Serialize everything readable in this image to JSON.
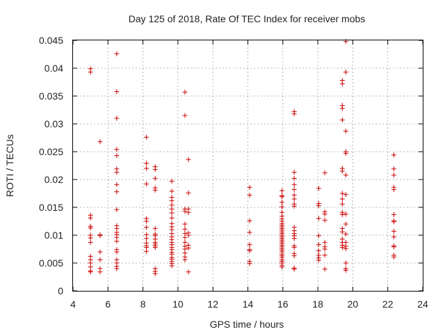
{
  "chart_data": {
    "type": "scatter",
    "title": "Day 125 of 2018, Rate Of TEC Index for receiver mobs",
    "xlabel": "GPS time / hours",
    "ylabel": "ROTI / TECUs",
    "xlim": [
      4,
      24
    ],
    "ylim": [
      0,
      0.045
    ],
    "xticks": [
      4,
      6,
      8,
      10,
      12,
      14,
      16,
      18,
      20,
      22,
      24
    ],
    "yticks": [
      0,
      0.005,
      0.01,
      0.015,
      0.02,
      0.025,
      0.03,
      0.035,
      0.04,
      0.045
    ],
    "grid": true,
    "marker": "+",
    "color": "#cc0000",
    "series": [
      {
        "name": "ROTI",
        "points": [
          [
            5.0,
            0.0399
          ],
          [
            5.0,
            0.0393
          ],
          [
            5.0,
            0.0136
          ],
          [
            5.0,
            0.0131
          ],
          [
            5.0,
            0.0116
          ],
          [
            5.0,
            0.0113
          ],
          [
            5.0,
            0.01
          ],
          [
            5.0,
            0.0095
          ],
          [
            5.0,
            0.0087
          ],
          [
            5.0,
            0.0062
          ],
          [
            5.0,
            0.0056
          ],
          [
            5.0,
            0.005
          ],
          [
            5.0,
            0.0043
          ],
          [
            5.0,
            0.0036
          ],
          [
            5.0,
            0.0034
          ],
          [
            5.55,
            0.0268
          ],
          [
            5.55,
            0.0101
          ],
          [
            5.55,
            0.0099
          ],
          [
            5.55,
            0.007
          ],
          [
            5.55,
            0.0056
          ],
          [
            5.55,
            0.004
          ],
          [
            5.55,
            0.0034
          ],
          [
            6.5,
            0.0426
          ],
          [
            6.5,
            0.0358
          ],
          [
            6.5,
            0.031
          ],
          [
            6.5,
            0.0254
          ],
          [
            6.5,
            0.0243
          ],
          [
            6.5,
            0.0219
          ],
          [
            6.5,
            0.0213
          ],
          [
            6.5,
            0.0191
          ],
          [
            6.5,
            0.0178
          ],
          [
            6.5,
            0.0146
          ],
          [
            6.5,
            0.0117
          ],
          [
            6.5,
            0.0112
          ],
          [
            6.5,
            0.0105
          ],
          [
            6.5,
            0.0101
          ],
          [
            6.5,
            0.0096
          ],
          [
            6.5,
            0.0089
          ],
          [
            6.5,
            0.0074
          ],
          [
            6.5,
            0.007
          ],
          [
            6.5,
            0.0056
          ],
          [
            6.5,
            0.005
          ],
          [
            6.5,
            0.0044
          ],
          [
            6.5,
            0.004
          ],
          [
            8.2,
            0.0276
          ],
          [
            8.2,
            0.0229
          ],
          [
            8.2,
            0.022
          ],
          [
            8.2,
            0.0192
          ],
          [
            8.2,
            0.013
          ],
          [
            8.2,
            0.0125
          ],
          [
            8.2,
            0.0114
          ],
          [
            8.2,
            0.0101
          ],
          [
            8.2,
            0.0094
          ],
          [
            8.2,
            0.0086
          ],
          [
            8.2,
            0.0081
          ],
          [
            8.2,
            0.0078
          ],
          [
            8.2,
            0.0071
          ],
          [
            8.7,
            0.0223
          ],
          [
            8.7,
            0.0218
          ],
          [
            8.7,
            0.0202
          ],
          [
            8.7,
            0.0185
          ],
          [
            8.7,
            0.0181
          ],
          [
            8.7,
            0.0112
          ],
          [
            8.7,
            0.0102
          ],
          [
            8.7,
            0.0099
          ],
          [
            8.7,
            0.0093
          ],
          [
            8.7,
            0.0087
          ],
          [
            8.7,
            0.0084
          ],
          [
            8.7,
            0.0081
          ],
          [
            8.7,
            0.0078
          ],
          [
            8.7,
            0.004
          ],
          [
            8.7,
            0.0035
          ],
          [
            8.7,
            0.0031
          ],
          [
            9.65,
            0.0197
          ],
          [
            9.65,
            0.0179
          ],
          [
            9.65,
            0.0168
          ],
          [
            9.65,
            0.0162
          ],
          [
            9.65,
            0.0154
          ],
          [
            9.65,
            0.0147
          ],
          [
            9.65,
            0.014
          ],
          [
            9.65,
            0.0131
          ],
          [
            9.65,
            0.0121
          ],
          [
            9.65,
            0.0115
          ],
          [
            9.65,
            0.011
          ],
          [
            9.65,
            0.0103
          ],
          [
            9.65,
            0.0097
          ],
          [
            9.65,
            0.0092
          ],
          [
            9.65,
            0.0087
          ],
          [
            9.65,
            0.0083
          ],
          [
            9.65,
            0.0078
          ],
          [
            9.65,
            0.0074
          ],
          [
            9.65,
            0.0069
          ],
          [
            9.65,
            0.0066
          ],
          [
            9.65,
            0.006
          ],
          [
            9.65,
            0.0057
          ],
          [
            9.65,
            0.0053
          ],
          [
            9.65,
            0.0049
          ],
          [
            9.65,
            0.0045
          ],
          [
            10.4,
            0.0357
          ],
          [
            10.4,
            0.0315
          ],
          [
            10.4,
            0.0147
          ],
          [
            10.4,
            0.0143
          ],
          [
            10.4,
            0.012
          ],
          [
            10.4,
            0.0111
          ],
          [
            10.4,
            0.0103
          ],
          [
            10.4,
            0.0096
          ],
          [
            10.4,
            0.0087
          ],
          [
            10.4,
            0.008
          ],
          [
            10.4,
            0.0075
          ],
          [
            10.4,
            0.0068
          ],
          [
            10.4,
            0.0061
          ],
          [
            10.4,
            0.0056
          ],
          [
            10.6,
            0.0236
          ],
          [
            10.6,
            0.0176
          ],
          [
            10.6,
            0.0147
          ],
          [
            10.6,
            0.0141
          ],
          [
            10.6,
            0.0104
          ],
          [
            10.6,
            0.01
          ],
          [
            10.6,
            0.0082
          ],
          [
            10.6,
            0.0077
          ],
          [
            10.6,
            0.0034
          ],
          [
            14.1,
            0.0186
          ],
          [
            14.1,
            0.0172
          ],
          [
            14.1,
            0.0126
          ],
          [
            14.1,
            0.0105
          ],
          [
            14.1,
            0.0083
          ],
          [
            14.1,
            0.0074
          ],
          [
            14.1,
            0.0072
          ],
          [
            14.1,
            0.0053
          ],
          [
            14.1,
            0.0049
          ],
          [
            15.95,
            0.018
          ],
          [
            15.95,
            0.0171
          ],
          [
            15.95,
            0.0169
          ],
          [
            15.95,
            0.0159
          ],
          [
            15.95,
            0.0151
          ],
          [
            15.95,
            0.0141
          ],
          [
            15.95,
            0.0134
          ],
          [
            15.95,
            0.0129
          ],
          [
            15.95,
            0.0125
          ],
          [
            15.95,
            0.0121
          ],
          [
            15.95,
            0.0118
          ],
          [
            15.95,
            0.0115
          ],
          [
            15.95,
            0.0112
          ],
          [
            15.95,
            0.0109
          ],
          [
            15.95,
            0.0106
          ],
          [
            15.95,
            0.0103
          ],
          [
            15.95,
            0.01
          ],
          [
            15.95,
            0.0097
          ],
          [
            15.95,
            0.0094
          ],
          [
            15.95,
            0.0091
          ],
          [
            15.95,
            0.0088
          ],
          [
            15.95,
            0.0085
          ],
          [
            15.95,
            0.0082
          ],
          [
            15.95,
            0.0079
          ],
          [
            15.95,
            0.0076
          ],
          [
            15.95,
            0.0073
          ],
          [
            15.95,
            0.007
          ],
          [
            15.95,
            0.0066
          ],
          [
            15.95,
            0.0063
          ],
          [
            15.95,
            0.006
          ],
          [
            15.95,
            0.0056
          ],
          [
            15.95,
            0.0053
          ],
          [
            15.95,
            0.005
          ],
          [
            15.95,
            0.0046
          ],
          [
            15.95,
            0.0043
          ],
          [
            16.65,
            0.0322
          ],
          [
            16.65,
            0.0318
          ],
          [
            16.65,
            0.0213
          ],
          [
            16.65,
            0.0202
          ],
          [
            16.65,
            0.0191
          ],
          [
            16.65,
            0.0182
          ],
          [
            16.65,
            0.0172
          ],
          [
            16.65,
            0.0165
          ],
          [
            16.65,
            0.0156
          ],
          [
            16.65,
            0.0152
          ],
          [
            16.65,
            0.0114
          ],
          [
            16.65,
            0.0108
          ],
          [
            16.65,
            0.0103
          ],
          [
            16.65,
            0.0099
          ],
          [
            16.65,
            0.0094
          ],
          [
            16.65,
            0.0081
          ],
          [
            16.65,
            0.0078
          ],
          [
            16.65,
            0.0067
          ],
          [
            16.65,
            0.0063
          ],
          [
            16.65,
            0.0041
          ],
          [
            16.65,
            0.0039
          ],
          [
            18.05,
            0.0184
          ],
          [
            18.05,
            0.0157
          ],
          [
            18.05,
            0.0153
          ],
          [
            18.05,
            0.013
          ],
          [
            18.05,
            0.0099
          ],
          [
            18.05,
            0.0083
          ],
          [
            18.05,
            0.0072
          ],
          [
            18.05,
            0.0064
          ],
          [
            18.05,
            0.0059
          ],
          [
            18.05,
            0.0055
          ],
          [
            18.4,
            0.0212
          ],
          [
            18.4,
            0.0142
          ],
          [
            18.4,
            0.0138
          ],
          [
            18.4,
            0.0127
          ],
          [
            18.4,
            0.0087
          ],
          [
            18.4,
            0.0079
          ],
          [
            18.4,
            0.0075
          ],
          [
            18.4,
            0.0064
          ],
          [
            18.4,
            0.0039
          ],
          [
            19.4,
            0.0378
          ],
          [
            19.4,
            0.0372
          ],
          [
            19.4,
            0.0333
          ],
          [
            19.4,
            0.0328
          ],
          [
            19.4,
            0.0307
          ],
          [
            19.4,
            0.022
          ],
          [
            19.4,
            0.0215
          ],
          [
            19.4,
            0.0175
          ],
          [
            19.4,
            0.0165
          ],
          [
            19.4,
            0.0156
          ],
          [
            19.4,
            0.0141
          ],
          [
            19.4,
            0.0137
          ],
          [
            19.4,
            0.0112
          ],
          [
            19.4,
            0.0106
          ],
          [
            19.4,
            0.0093
          ],
          [
            19.4,
            0.0087
          ],
          [
            19.4,
            0.0082
          ],
          [
            19.4,
            0.0078
          ],
          [
            19.6,
            0.0448
          ],
          [
            19.6,
            0.0393
          ],
          [
            19.6,
            0.0287
          ],
          [
            19.6,
            0.025
          ],
          [
            19.6,
            0.0247
          ],
          [
            19.6,
            0.0208
          ],
          [
            19.6,
            0.0173
          ],
          [
            19.6,
            0.0138
          ],
          [
            19.6,
            0.012
          ],
          [
            19.6,
            0.0102
          ],
          [
            19.6,
            0.0087
          ],
          [
            19.6,
            0.008
          ],
          [
            19.6,
            0.0076
          ],
          [
            19.6,
            0.005
          ],
          [
            19.6,
            0.004
          ],
          [
            19.6,
            0.0037
          ],
          [
            22.35,
            0.0244
          ],
          [
            22.35,
            0.0219
          ],
          [
            22.35,
            0.0208
          ],
          [
            22.35,
            0.0186
          ],
          [
            22.35,
            0.0182
          ],
          [
            22.35,
            0.0137
          ],
          [
            22.35,
            0.0126
          ],
          [
            22.35,
            0.0124
          ],
          [
            22.35,
            0.0107
          ],
          [
            22.35,
            0.0097
          ],
          [
            22.35,
            0.0081
          ],
          [
            22.35,
            0.0079
          ],
          [
            22.35,
            0.0064
          ],
          [
            22.35,
            0.0061
          ]
        ]
      }
    ]
  }
}
